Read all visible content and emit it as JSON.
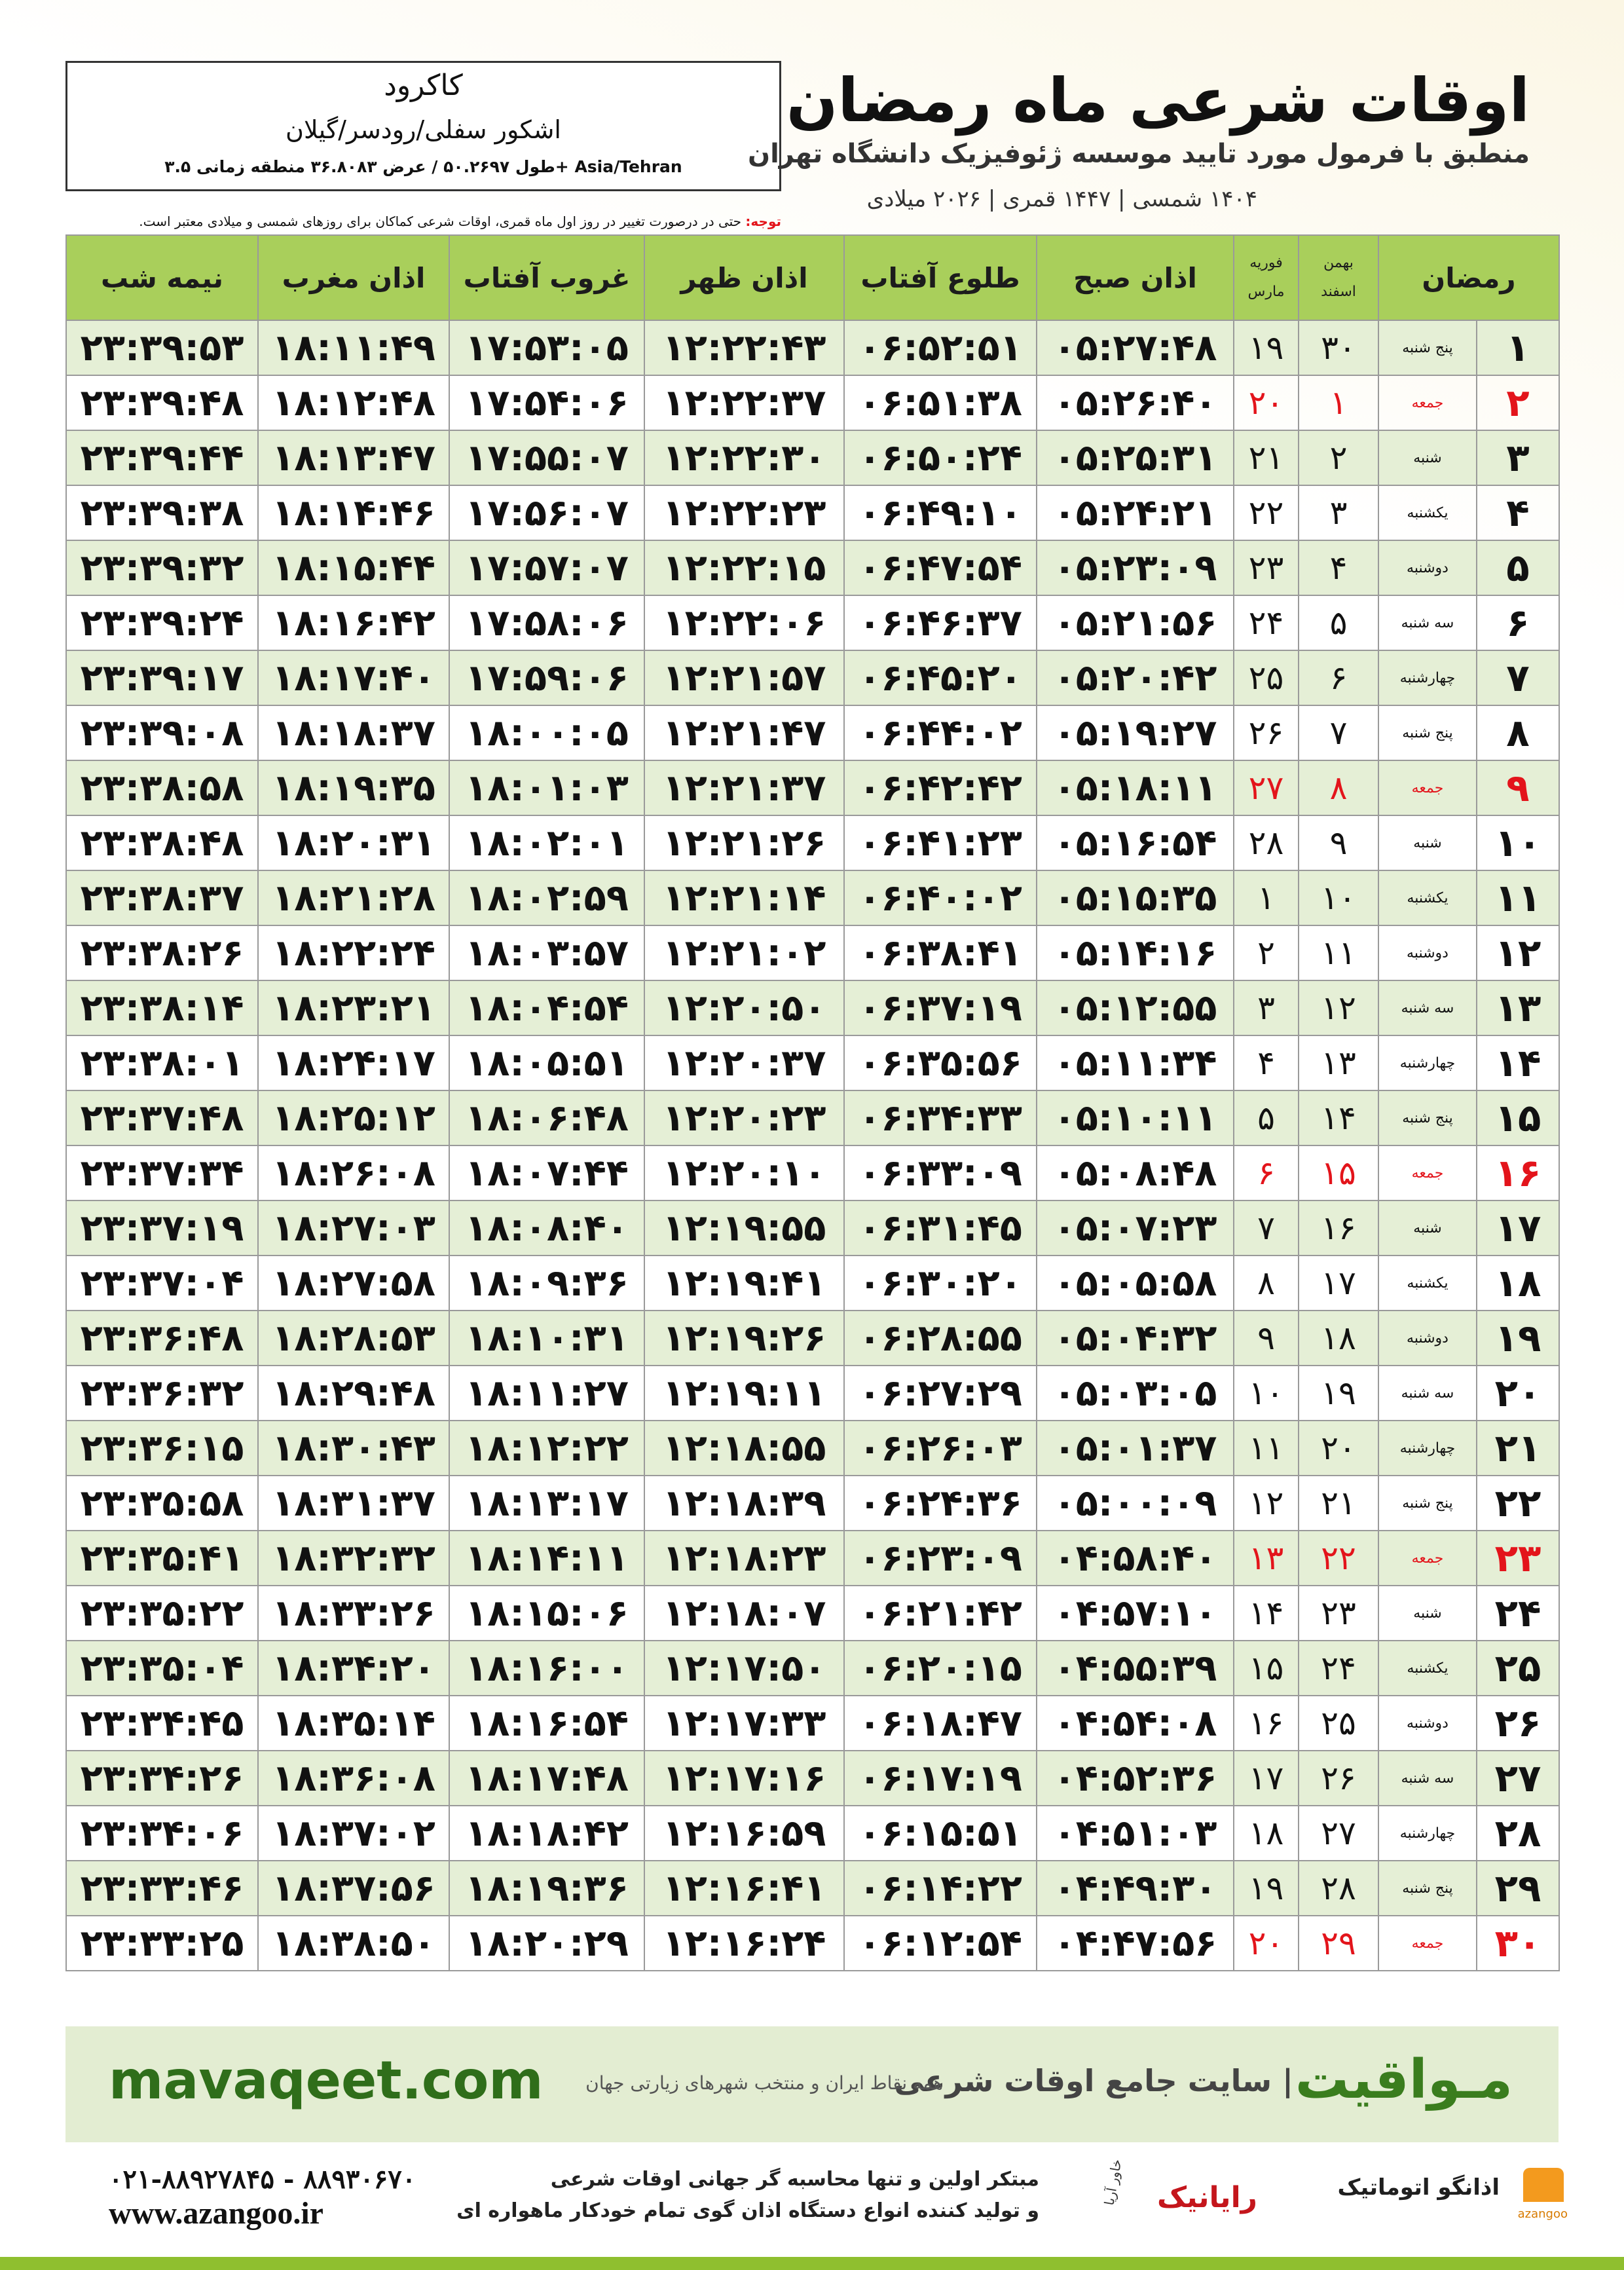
{
  "header": {
    "city": "کاکرود",
    "region": "اشکور سفلی/رودسر/گیلان",
    "coords": "طول ۵۰.۲۶۹۷ / عرض ۳۶.۸۰۸۳ منطقه زمانی ۳.۵+ Asia/Tehran",
    "title": "اوقات شرعی ماه رمضان",
    "subtitle": "منطبق با فرمول مورد تایید موسسه ژئوفیزیک دانشگاه تهران",
    "dates": "۱۴۰۴ شمسی | ۱۴۴۷ قمری | ۲۰۲۶ میلادی",
    "note_label": "توجه:",
    "note": "حتی در درصورت تغییر در روز اول ماه قمری، اوقات شرعی کماکان برای روزهای شمسی و میلادی معتبر است."
  },
  "table": {
    "columns": {
      "ramadan": "رمضان",
      "shamsi": [
        "بهمن",
        "اسفند"
      ],
      "miladi": [
        "فوریه",
        "مارس"
      ],
      "times": [
        "اذان صبح",
        "طلوع آفتاب",
        "اذان ظهر",
        "غروب آفتاب",
        "اذان مغرب",
        "نیمه شب"
      ]
    },
    "rows": [
      {
        "cells": [
          "۱",
          "پنج شنبه",
          "۳۰",
          "۱۹",
          "۰۵:۲۷:۴۸",
          "۰۶:۵۲:۵۱",
          "۱۲:۲۲:۴۳",
          "۱۷:۵۳:۰۵",
          "۱۸:۱۱:۴۹",
          "۲۳:۳۹:۵۳"
        ]
      },
      {
        "cells": [
          "۲",
          "جمعه",
          "۱",
          "۲۰",
          "۰۵:۲۶:۴۰",
          "۰۶:۵۱:۳۸",
          "۱۲:۲۲:۳۷",
          "۱۷:۵۴:۰۶",
          "۱۸:۱۲:۴۸",
          "۲۳:۳۹:۴۸"
        ],
        "color": "#e3141b"
      },
      {
        "cells": [
          "۳",
          "شنبه",
          "۲",
          "۲۱",
          "۰۵:۲۵:۳۱",
          "۰۶:۵۰:۲۴",
          "۱۲:۲۲:۳۰",
          "۱۷:۵۵:۰۷",
          "۱۸:۱۳:۴۷",
          "۲۳:۳۹:۴۴"
        ]
      },
      {
        "cells": [
          "۴",
          "یکشنبه",
          "۳",
          "۲۲",
          "۰۵:۲۴:۲۱",
          "۰۶:۴۹:۱۰",
          "۱۲:۲۲:۲۳",
          "۱۷:۵۶:۰۷",
          "۱۸:۱۴:۴۶",
          "۲۳:۳۹:۳۸"
        ]
      },
      {
        "cells": [
          "۵",
          "دوشنبه",
          "۴",
          "۲۳",
          "۰۵:۲۳:۰۹",
          "۰۶:۴۷:۵۴",
          "۱۲:۲۲:۱۵",
          "۱۷:۵۷:۰۷",
          "۱۸:۱۵:۴۴",
          "۲۳:۳۹:۳۲"
        ]
      },
      {
        "cells": [
          "۶",
          "سه شنبه",
          "۵",
          "۲۴",
          "۰۵:۲۱:۵۶",
          "۰۶:۴۶:۳۷",
          "۱۲:۲۲:۰۶",
          "۱۷:۵۸:۰۶",
          "۱۸:۱۶:۴۲",
          "۲۳:۳۹:۲۴"
        ]
      },
      {
        "cells": [
          "۷",
          "چهارشنبه",
          "۶",
          "۲۵",
          "۰۵:۲۰:۴۲",
          "۰۶:۴۵:۲۰",
          "۱۲:۲۱:۵۷",
          "۱۷:۵۹:۰۶",
          "۱۸:۱۷:۴۰",
          "۲۳:۳۹:۱۷"
        ]
      },
      {
        "cells": [
          "۸",
          "پنج شنبه",
          "۷",
          "۲۶",
          "۰۵:۱۹:۲۷",
          "۰۶:۴۴:۰۲",
          "۱۲:۲۱:۴۷",
          "۱۸:۰۰:۰۵",
          "۱۸:۱۸:۳۷",
          "۲۳:۳۹:۰۸"
        ]
      },
      {
        "cells": [
          "۹",
          "جمعه",
          "۸",
          "۲۷",
          "۰۵:۱۸:۱۱",
          "۰۶:۴۲:۴۲",
          "۱۲:۲۱:۳۷",
          "۱۸:۰۱:۰۳",
          "۱۸:۱۹:۳۵",
          "۲۳:۳۸:۵۸"
        ],
        "color": "#e3141b"
      },
      {
        "cells": [
          "۱۰",
          "شنبه",
          "۹",
          "۲۸",
          "۰۵:۱۶:۵۴",
          "۰۶:۴۱:۲۳",
          "۱۲:۲۱:۲۶",
          "۱۸:۰۲:۰۱",
          "۱۸:۲۰:۳۱",
          "۲۳:۳۸:۴۸"
        ]
      },
      {
        "cells": [
          "۱۱",
          "یکشنبه",
          "۱۰",
          "۱",
          "۰۵:۱۵:۳۵",
          "۰۶:۴۰:۰۲",
          "۱۲:۲۱:۱۴",
          "۱۸:۰۲:۵۹",
          "۱۸:۲۱:۲۸",
          "۲۳:۳۸:۳۷"
        ]
      },
      {
        "cells": [
          "۱۲",
          "دوشنبه",
          "۱۱",
          "۲",
          "۰۵:۱۴:۱۶",
          "۰۶:۳۸:۴۱",
          "۱۲:۲۱:۰۲",
          "۱۸:۰۳:۵۷",
          "۱۸:۲۲:۲۴",
          "۲۳:۳۸:۲۶"
        ]
      },
      {
        "cells": [
          "۱۳",
          "سه شنبه",
          "۱۲",
          "۳",
          "۰۵:۱۲:۵۵",
          "۰۶:۳۷:۱۹",
          "۱۲:۲۰:۵۰",
          "۱۸:۰۴:۵۴",
          "۱۸:۲۳:۲۱",
          "۲۳:۳۸:۱۴"
        ]
      },
      {
        "cells": [
          "۱۴",
          "چهارشنبه",
          "۱۳",
          "۴",
          "۰۵:۱۱:۳۴",
          "۰۶:۳۵:۵۶",
          "۱۲:۲۰:۳۷",
          "۱۸:۰۵:۵۱",
          "۱۸:۲۴:۱۷",
          "۲۳:۳۸:۰۱"
        ]
      },
      {
        "cells": [
          "۱۵",
          "پنج شنبه",
          "۱۴",
          "۵",
          "۰۵:۱۰:۱۱",
          "۰۶:۳۴:۳۳",
          "۱۲:۲۰:۲۳",
          "۱۸:۰۶:۴۸",
          "۱۸:۲۵:۱۲",
          "۲۳:۳۷:۴۸"
        ]
      },
      {
        "cells": [
          "۱۶",
          "جمعه",
          "۱۵",
          "۶",
          "۰۵:۰۸:۴۸",
          "۰۶:۳۳:۰۹",
          "۱۲:۲۰:۱۰",
          "۱۸:۰۷:۴۴",
          "۱۸:۲۶:۰۸",
          "۲۳:۳۷:۳۴"
        ],
        "color": "#e3141b"
      },
      {
        "cells": [
          "۱۷",
          "شنبه",
          "۱۶",
          "۷",
          "۰۵:۰۷:۲۳",
          "۰۶:۳۱:۴۵",
          "۱۲:۱۹:۵۵",
          "۱۸:۰۸:۴۰",
          "۱۸:۲۷:۰۳",
          "۲۳:۳۷:۱۹"
        ]
      },
      {
        "cells": [
          "۱۸",
          "یکشنبه",
          "۱۷",
          "۸",
          "۰۵:۰۵:۵۸",
          "۰۶:۳۰:۲۰",
          "۱۲:۱۹:۴۱",
          "۱۸:۰۹:۳۶",
          "۱۸:۲۷:۵۸",
          "۲۳:۳۷:۰۴"
        ]
      },
      {
        "cells": [
          "۱۹",
          "دوشنبه",
          "۱۸",
          "۹",
          "۰۵:۰۴:۳۲",
          "۰۶:۲۸:۵۵",
          "۱۲:۱۹:۲۶",
          "۱۸:۱۰:۳۱",
          "۱۸:۲۸:۵۳",
          "۲۳:۳۶:۴۸"
        ]
      },
      {
        "cells": [
          "۲۰",
          "سه شنبه",
          "۱۹",
          "۱۰",
          "۰۵:۰۳:۰۵",
          "۰۶:۲۷:۲۹",
          "۱۲:۱۹:۱۱",
          "۱۸:۱۱:۲۷",
          "۱۸:۲۹:۴۸",
          "۲۳:۳۶:۳۲"
        ]
      },
      {
        "cells": [
          "۲۱",
          "چهارشنبه",
          "۲۰",
          "۱۱",
          "۰۵:۰۱:۳۷",
          "۰۶:۲۶:۰۳",
          "۱۲:۱۸:۵۵",
          "۱۸:۱۲:۲۲",
          "۱۸:۳۰:۴۳",
          "۲۳:۳۶:۱۵"
        ]
      },
      {
        "cells": [
          "۲۲",
          "پنج شنبه",
          "۲۱",
          "۱۲",
          "۰۵:۰۰:۰۹",
          "۰۶:۲۴:۳۶",
          "۱۲:۱۸:۳۹",
          "۱۸:۱۳:۱۷",
          "۱۸:۳۱:۳۷",
          "۲۳:۳۵:۵۸"
        ]
      },
      {
        "cells": [
          "۲۳",
          "جمعه",
          "۲۲",
          "۱۳",
          "۰۴:۵۸:۴۰",
          "۰۶:۲۳:۰۹",
          "۱۲:۱۸:۲۳",
          "۱۸:۱۴:۱۱",
          "۱۸:۳۲:۳۲",
          "۲۳:۳۵:۴۱"
        ],
        "color": "#e3141b"
      },
      {
        "cells": [
          "۲۴",
          "شنبه",
          "۲۳",
          "۱۴",
          "۰۴:۵۷:۱۰",
          "۰۶:۲۱:۴۲",
          "۱۲:۱۸:۰۷",
          "۱۸:۱۵:۰۶",
          "۱۸:۳۳:۲۶",
          "۲۳:۳۵:۲۲"
        ]
      },
      {
        "cells": [
          "۲۵",
          "یکشنبه",
          "۲۴",
          "۱۵",
          "۰۴:۵۵:۳۹",
          "۰۶:۲۰:۱۵",
          "۱۲:۱۷:۵۰",
          "۱۸:۱۶:۰۰",
          "۱۸:۳۴:۲۰",
          "۲۳:۳۵:۰۴"
        ]
      },
      {
        "cells": [
          "۲۶",
          "دوشنبه",
          "۲۵",
          "۱۶",
          "۰۴:۵۴:۰۸",
          "۰۶:۱۸:۴۷",
          "۱۲:۱۷:۳۳",
          "۱۸:۱۶:۵۴",
          "۱۸:۳۵:۱۴",
          "۲۳:۳۴:۴۵"
        ]
      },
      {
        "cells": [
          "۲۷",
          "سه شنبه",
          "۲۶",
          "۱۷",
          "۰۴:۵۲:۳۶",
          "۰۶:۱۷:۱۹",
          "۱۲:۱۷:۱۶",
          "۱۸:۱۷:۴۸",
          "۱۸:۳۶:۰۸",
          "۲۳:۳۴:۲۶"
        ]
      },
      {
        "cells": [
          "۲۸",
          "چهارشنبه",
          "۲۷",
          "۱۸",
          "۰۴:۵۱:۰۳",
          "۰۶:۱۵:۵۱",
          "۱۲:۱۶:۵۹",
          "۱۸:۱۸:۴۲",
          "۱۸:۳۷:۰۲",
          "۲۳:۳۴:۰۶"
        ]
      },
      {
        "cells": [
          "۲۹",
          "پنج شنبه",
          "۲۸",
          "۱۹",
          "۰۴:۴۹:۳۰",
          "۰۶:۱۴:۲۲",
          "۱۲:۱۶:۴۱",
          "۱۸:۱۹:۳۶",
          "۱۸:۳۷:۵۶",
          "۲۳:۳۳:۴۶"
        ]
      },
      {
        "cells": [
          "۳۰",
          "جمعه",
          "۲۹",
          "۲۰",
          "۰۴:۴۷:۵۶",
          "۰۶:۱۲:۵۴",
          "۱۲:۱۶:۲۴",
          "۱۸:۲۰:۲۹",
          "۱۸:۳۸:۵۰",
          "۲۳:۳۳:۲۵"
        ],
        "color": "#e3141b"
      }
    ]
  },
  "footer": {
    "brand": "مـواقیت",
    "slogan": "| سایت جامع اوقات شرعی",
    "scope": "همه نقاط ایران و منتخب شهرهای زیارتی جهان",
    "site": "mavaqeet.com",
    "phone": "۰۲۱-۸۸۹۲۷۸۴۵ - ۸۸۹۳۰۶۷۰",
    "web": "www.azangoo.ir",
    "line1": "مبتکر اولین و تنها محاسبه گر جهانی اوقات شرعی",
    "line2": "و تولید کننده انواع دستگاه اذان گوی تمام خودکار ماهواره ای",
    "logo1": "رایانیک",
    "logo1b": "خاور آریا",
    "logo2": "اذانگو اتوماتیک",
    "logo2b": "azangoo"
  }
}
